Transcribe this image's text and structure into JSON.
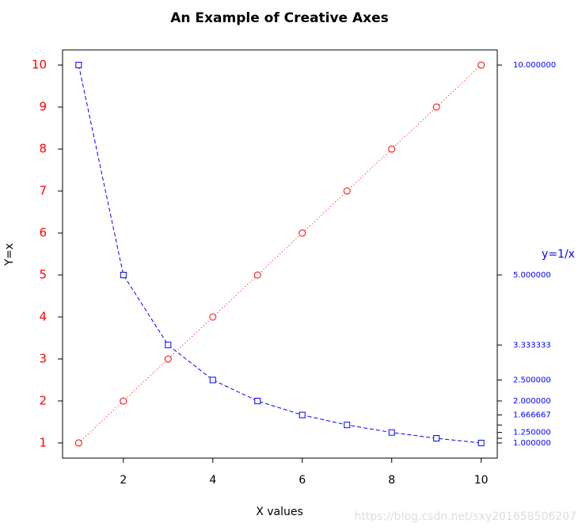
{
  "chart_data": {
    "type": "line",
    "title": "An Example of Creative Axes",
    "x_label": "X values",
    "y_label": "Y=x",
    "y2_label": "y=1/x",
    "watermark": "https://blog.csdn.net/sxy201658506207",
    "x": [
      1,
      2,
      3,
      4,
      5,
      6,
      7,
      8,
      9,
      10
    ],
    "series": [
      {
        "name": "Y=x",
        "color": "#ff0000",
        "marker": "circle",
        "dash": "dotted",
        "values": [
          1,
          2,
          3,
          4,
          5,
          6,
          7,
          8,
          9,
          10
        ]
      },
      {
        "name": "y=1/x",
        "color": "#0000ff",
        "marker": "square",
        "dash": "dashed",
        "axis": "y2",
        "values": [
          10,
          5,
          3.333333,
          2.5,
          2,
          1.666667,
          1.428571,
          1.25,
          1.111111,
          1
        ]
      }
    ],
    "xlim": [
      0.64,
      10.36
    ],
    "ylim": [
      0.64,
      10.36
    ],
    "y2lim": [
      0.64,
      10.36
    ],
    "xticks": [
      2,
      4,
      6,
      8,
      10
    ],
    "yticks": [
      1,
      2,
      3,
      4,
      5,
      6,
      7,
      8,
      9,
      10
    ],
    "ytick_color": "#ff0000",
    "y2tick_color": "#0000ff",
    "y2ticks": [
      {
        "value": 10,
        "label": "10.000000"
      },
      {
        "value": 5,
        "label": "5.000000"
      },
      {
        "value": 3.333333,
        "label": "3.333333"
      },
      {
        "value": 2.5,
        "label": "2.500000"
      },
      {
        "value": 2,
        "label": "2.000000"
      },
      {
        "value": 1.666667,
        "label": "1.666667"
      },
      {
        "value": 1.428571,
        "label": null
      },
      {
        "value": 1.25,
        "label": "1.250000"
      },
      {
        "value": 1.111111,
        "label": null
      },
      {
        "value": 1,
        "label": "1.000000"
      }
    ]
  }
}
